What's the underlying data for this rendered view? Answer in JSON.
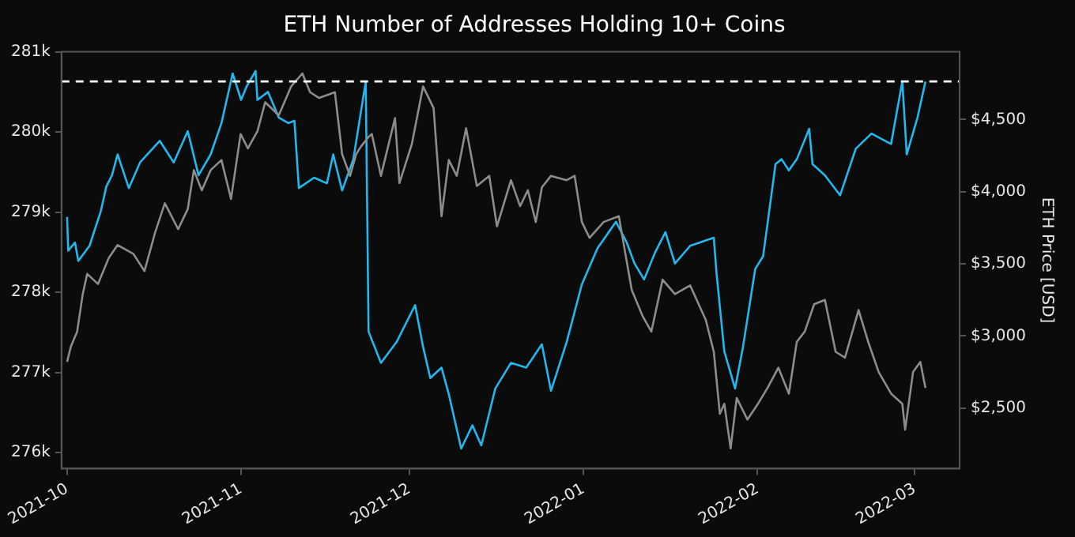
{
  "chart_data": {
    "type": "line",
    "title": "ETH Number of Addresses Holding 10+ Coins",
    "y2label": "ETH Price [USD]",
    "xlim": [
      "2021-09-30",
      "2022-03-09"
    ],
    "xticks": [
      "2021-10",
      "2021-11",
      "2021-12",
      "2022-01",
      "2022-02",
      "2022-03"
    ],
    "ylim": [
      275800,
      281000
    ],
    "yticks": [
      {
        "value": 276000,
        "label": "276k"
      },
      {
        "value": 277000,
        "label": "277k"
      },
      {
        "value": 278000,
        "label": "278k"
      },
      {
        "value": 279000,
        "label": "279k"
      },
      {
        "value": 280000,
        "label": "280k"
      },
      {
        "value": 281000,
        "label": "281k"
      }
    ],
    "y2lim": [
      2080,
      4970
    ],
    "y2ticks": [
      {
        "value": 2500,
        "label": "$2,500"
      },
      {
        "value": 3000,
        "label": "$3,000"
      },
      {
        "value": 3500,
        "label": "$3,500"
      },
      {
        "value": 4000,
        "label": "$4,000"
      },
      {
        "value": 4500,
        "label": "$4,500"
      }
    ],
    "grid": false,
    "legend": false,
    "marker": "none",
    "line_style": "solid",
    "ref_lines": [
      {
        "axis": "y",
        "value": 280630,
        "color": "#ffffff",
        "line_style": "dashed"
      }
    ],
    "series": [
      {
        "axis": "y2",
        "color": "#8c8c8c",
        "x": [
          "2021-10-01",
          "2021-10-01T17:00",
          "2021-10-02T19:00",
          "2021-10-03T19:00",
          "2021-10-04T14:00",
          "2021-10-06T12:00",
          "2021-10-08T10:00",
          "2021-10-10",
          "2021-10-12T19:00",
          "2021-10-14T19:00",
          "2021-10-16T17:00",
          "2021-10-18T10:00",
          "2021-10-20T19:00",
          "2021-10-22T12:00",
          "2021-10-23T14:00",
          "2021-10-25",
          "2021-10-26T14:00",
          "2021-10-28T12:00",
          "2021-10-30T05:00",
          "2021-10-31T22:00",
          "2021-11-02T05:00",
          "2021-11-03T22:00",
          "2021-11-05T07:00",
          "2021-11-07T17:00",
          "2021-11-09T22:00",
          "2021-11-11T22:00",
          "2021-11-13T07:00",
          "2021-11-14T22:00",
          "2021-11-17T17:00",
          "2021-11-19",
          "2021-11-20T10:00",
          "2021-11-21T12:00",
          "2021-11-22T07:00",
          "2021-11-23T17:00",
          "2021-11-24T07:00",
          "2021-11-25T22:00",
          "2021-11-28T10:00",
          "2021-11-29T05:00",
          "2021-12-01T10:00",
          "2021-12-03T10:00",
          "2021-12-05T07:00",
          "2021-12-06T17:00",
          "2021-12-08",
          "2021-12-09T10:00",
          "2021-12-11T02:00",
          "2021-12-13",
          "2021-12-15T05:00",
          "2021-12-16T14:00",
          "2021-12-19T02:00",
          "2021-12-20T17:00",
          "2021-12-22T02:00",
          "2021-12-23T12:00",
          "2021-12-24T14:00",
          "2021-12-26T05:00",
          "2021-12-29",
          "2021-12-30T10:00",
          "2021-12-31T17:00",
          "2022-01-02T02:00",
          "2022-01-04T14:00",
          "2022-01-07T07:00",
          "2022-01-09T14:00",
          "2022-01-11T12:00",
          "2022-01-13T02:00",
          "2022-01-15T02:00",
          "2022-01-17T07:00",
          "2022-01-20",
          "2022-01-22T19:00",
          "2022-01-24T05:00",
          "2022-01-25T07:00",
          "2022-01-26T02:00",
          "2022-01-27T05:00",
          "2022-01-28T07:00",
          "2022-01-30T05:00",
          "2022-02-01T02:00",
          "2022-02-02T19:00",
          "2022-02-04T17:00",
          "2022-02-06T14:00",
          "2022-02-08",
          "2022-02-09T10:00",
          "2022-02-11T02:00",
          "2022-02-13",
          "2022-02-14T22:00",
          "2022-02-16T14:00",
          "2022-02-19",
          "2022-02-20T17:00",
          "2022-02-22T14:00",
          "2022-02-24T19:00",
          "2022-02-26T19:00",
          "2022-02-27T07:00",
          "2022-02-28T17:00",
          "2022-03-02",
          "2022-03-02T22:00"
        ],
        "values": [
          2820,
          2930,
          3030,
          3290,
          3430,
          3360,
          3540,
          3630,
          3570,
          3450,
          3720,
          3920,
          3740,
          3880,
          4150,
          4010,
          4150,
          4220,
          3950,
          4400,
          4300,
          4420,
          4620,
          4530,
          4730,
          4820,
          4690,
          4650,
          4690,
          4260,
          4110,
          4260,
          4310,
          4380,
          4400,
          4110,
          4510,
          4060,
          4330,
          4730,
          4580,
          3830,
          4220,
          4110,
          4440,
          4040,
          4110,
          3760,
          4080,
          3900,
          4010,
          3790,
          4030,
          4110,
          4080,
          4110,
          3790,
          3680,
          3790,
          3830,
          3320,
          3140,
          3030,
          3390,
          3290,
          3350,
          3110,
          2890,
          2460,
          2530,
          2220,
          2570,
          2420,
          2530,
          2640,
          2780,
          2600,
          2960,
          3030,
          3220,
          3250,
          2890,
          2850,
          3180,
          2960,
          2750,
          2600,
          2530,
          2350,
          2750,
          2820,
          2640
        ]
      },
      {
        "color": "#22b7ee",
        "x": [
          "2021-10-01",
          "2021-10-01T05:00",
          "2021-10-02T10:00",
          "2021-10-03",
          "2021-10-05",
          "2021-10-07",
          "2021-10-08",
          "2021-10-09",
          "2021-10-10",
          "2021-10-12",
          "2021-10-14",
          "2021-10-17T12:00",
          "2021-10-20",
          "2021-10-22T12:00",
          "2021-10-24T10:00",
          "2021-10-26T14:00",
          "2021-10-28T12:00",
          "2021-10-30T12:00",
          "2021-11-01",
          "2021-11-02",
          "2021-11-03T14:00",
          "2021-11-03T22:00",
          "2021-11-05T19:00",
          "2021-11-07T17:00",
          "2021-11-09T10:00",
          "2021-11-10T12:00",
          "2021-11-11T07:00",
          "2021-11-14",
          "2021-11-16T07:00",
          "2021-11-17T10:00",
          "2021-11-19",
          "2021-11-21",
          "2021-11-23T05:00",
          "2021-11-23T17:00",
          "2021-11-25T22:00",
          "2021-11-28T17:00",
          "2021-12-02",
          "2021-12-03T10:00",
          "2021-12-04T17:00",
          "2021-12-06T17:00",
          "2021-12-08",
          "2021-12-10T05:00",
          "2021-12-12T05:00",
          "2021-12-13T19:00",
          "2021-12-16T07:00",
          "2021-12-19T02:00",
          "2021-12-21T19:00",
          "2021-12-24T14:00",
          "2021-12-26T05:00",
          "2021-12-29",
          "2021-12-31T17:00",
          "2022-01-03T12:00",
          "2022-01-06T19:00",
          "2022-01-08T17:00",
          "2022-01-10T02:00",
          "2022-01-11T19:00",
          "2022-01-13T17:00",
          "2022-01-15T14:00",
          "2022-01-17T07:00",
          "2022-01-20",
          "2022-01-24T05:00",
          "2022-01-24T17:00",
          "2022-01-26T02:00",
          "2022-01-28",
          "2022-01-29T10:00",
          "2022-01-31T14:00",
          "2022-02-02",
          "2022-02-04T05:00",
          "2022-02-05T07:00",
          "2022-02-06T14:00",
          "2022-02-08",
          "2022-02-10T05:00",
          "2022-02-10T19:00",
          "2022-02-13",
          "2022-02-15T17:00",
          "2022-02-18T12:00",
          "2022-02-21T07:00",
          "2022-02-24T19:00",
          "2022-02-26T19:00",
          "2022-02-27T14:00",
          "2022-03-01T12:00",
          "2022-03-02T22:00"
        ],
        "values": [
          278940,
          278520,
          278620,
          278390,
          278580,
          279010,
          279320,
          279460,
          279720,
          279300,
          279620,
          279890,
          279620,
          280010,
          279460,
          279720,
          280110,
          280730,
          280400,
          280570,
          280760,
          280400,
          280500,
          280180,
          280110,
          280140,
          279300,
          279430,
          279360,
          279720,
          279270,
          279660,
          280630,
          277510,
          277120,
          277380,
          277840,
          277320,
          276930,
          277060,
          276730,
          276050,
          276340,
          276090,
          276800,
          277120,
          277060,
          277350,
          276770,
          277380,
          278100,
          278550,
          278880,
          278620,
          278360,
          278160,
          278490,
          278750,
          278360,
          278580,
          278680,
          278230,
          277260,
          276800,
          277320,
          278290,
          278450,
          279600,
          279660,
          279520,
          279660,
          280040,
          279600,
          279460,
          279210,
          279790,
          279980,
          279850,
          280630,
          279720,
          280180,
          280630
        ]
      }
    ]
  }
}
